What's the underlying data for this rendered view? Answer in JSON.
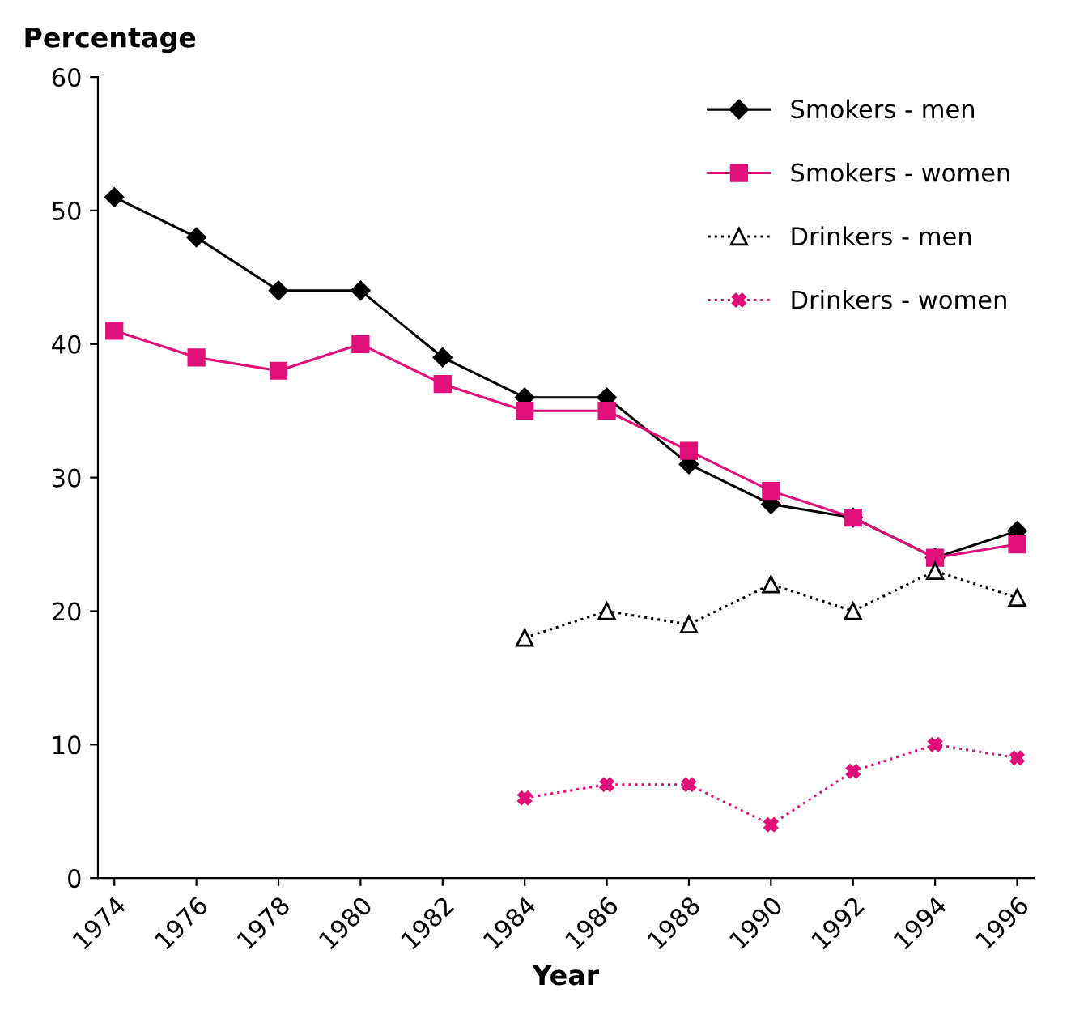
{
  "chart_data": {
    "type": "line",
    "ylabel": "Percentage",
    "xlabel": "Year",
    "categories": [
      "1974",
      "1976",
      "1978",
      "1980",
      "1982",
      "1984",
      "1986",
      "1988",
      "1990",
      "1992",
      "1994",
      "1996"
    ],
    "series": [
      {
        "name": "Smokers - men",
        "color": "#000000",
        "marker": "diamond",
        "line_style": "solid",
        "values": [
          51,
          48,
          44,
          44,
          39,
          36,
          36,
          31,
          28,
          27,
          24,
          26
        ]
      },
      {
        "name": "Smokers - women",
        "color": "#e0107a",
        "marker": "square",
        "line_style": "solid",
        "values": [
          41,
          39,
          38,
          40,
          37,
          35,
          35,
          32,
          29,
          27,
          24,
          25
        ]
      },
      {
        "name": "Drinkers - men",
        "color": "#000000",
        "marker": "triangle",
        "line_style": "dotted",
        "values": [
          null,
          null,
          null,
          null,
          null,
          18,
          20,
          19,
          22,
          20,
          23,
          21
        ]
      },
      {
        "name": "Drinkers - women",
        "color": "#e0107a",
        "marker": "cross",
        "line_style": "dotted",
        "values": [
          null,
          null,
          null,
          null,
          null,
          6,
          7,
          7,
          4,
          8,
          10,
          9
        ]
      }
    ],
    "ylim": [
      0,
      60
    ],
    "yticks": [
      0,
      10,
      20,
      30,
      40,
      50,
      60
    ],
    "grid": false,
    "legend": "top right"
  }
}
